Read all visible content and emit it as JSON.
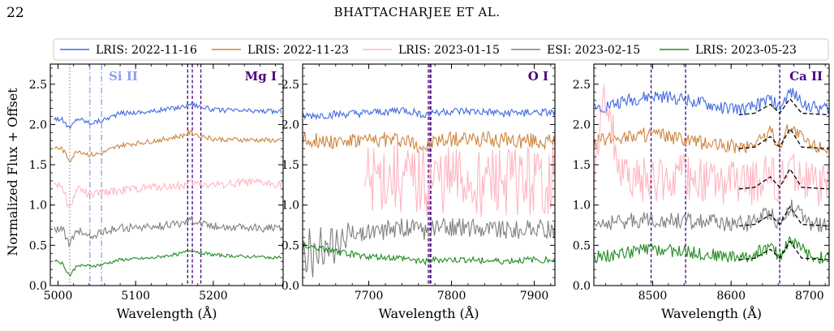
{
  "header": {
    "page_number": "22",
    "running_head": "BHATTACHARJEE ET AL."
  },
  "legend": {
    "placement": "top",
    "entries": [
      {
        "label": "LRIS: 2022-11-16",
        "color": "#4169e1"
      },
      {
        "label": "LRIS: 2022-11-23",
        "color": "#cd853f"
      },
      {
        "label": "LRIS: 2023-01-15",
        "color": "#ffb6c1"
      },
      {
        "label": "ESI: 2023-02-15",
        "color": "#808080"
      },
      {
        "label": "LRIS: 2023-05-23",
        "color": "#228b22"
      }
    ]
  },
  "shared_ylabel": "Normalized Flux + Offset",
  "chart_data": [
    {
      "type": "line",
      "xlabel": "Wavelength (Å)",
      "ylabel": "Normalized Flux + Offset",
      "xlim": [
        4990,
        5290
      ],
      "ylim": [
        0,
        2.75
      ],
      "xticks": [
        5000,
        5100,
        5200
      ],
      "yticks": [
        0.0,
        0.5,
        1.0,
        1.5,
        2.0,
        2.5
      ],
      "line_labels": [
        {
          "text": "Si II",
          "color": "#8a9ff0"
        },
        {
          "text": "Mg I",
          "color": "#4b0082"
        }
      ],
      "vlines": [
        {
          "x": 5015,
          "color": "#999999",
          "style": "dotted"
        },
        {
          "x": 5041,
          "color": "#8a9ff0",
          "style": "dashdot"
        },
        {
          "x": 5056,
          "color": "#8a9ff0",
          "style": "dashdot"
        },
        {
          "x": 5167,
          "color": "#4b0082",
          "style": "dashed"
        },
        {
          "x": 5173,
          "color": "#4b0082",
          "style": "dashed"
        },
        {
          "x": 5184,
          "color": "#4b0082",
          "style": "dashed"
        }
      ],
      "series": [
        {
          "name": "LRIS: 2022-11-16",
          "color": "#4169e1",
          "x": [
            4995,
            5005,
            5015,
            5025,
            5041,
            5056,
            5080,
            5120,
            5160,
            5170,
            5200,
            5240,
            5288
          ],
          "y": [
            2.08,
            2.06,
            1.95,
            2.08,
            2.02,
            2.05,
            2.14,
            2.16,
            2.22,
            2.26,
            2.18,
            2.17,
            2.16
          ]
        },
        {
          "name": "LRIS: 2022-11-23",
          "color": "#cd853f",
          "x": [
            4995,
            5005,
            5015,
            5025,
            5041,
            5056,
            5080,
            5120,
            5160,
            5170,
            5200,
            5240,
            5288
          ],
          "y": [
            1.71,
            1.7,
            1.55,
            1.68,
            1.62,
            1.64,
            1.74,
            1.79,
            1.86,
            1.9,
            1.82,
            1.81,
            1.8
          ]
        },
        {
          "name": "LRIS: 2023-01-15",
          "color": "#ffb6c1",
          "x": [
            4995,
            5005,
            5015,
            5025,
            5041,
            5056,
            5080,
            5120,
            5160,
            5170,
            5200,
            5240,
            5288
          ],
          "y": [
            1.27,
            1.25,
            0.95,
            1.22,
            1.12,
            1.15,
            1.18,
            1.22,
            1.24,
            1.27,
            1.25,
            1.28,
            1.26
          ]
        },
        {
          "name": "ESI: 2023-02-15",
          "color": "#808080",
          "x": [
            4995,
            5005,
            5015,
            5025,
            5041,
            5056,
            5080,
            5120,
            5160,
            5170,
            5200,
            5240,
            5288
          ],
          "y": [
            0.7,
            0.72,
            0.5,
            0.7,
            0.6,
            0.66,
            0.72,
            0.72,
            0.78,
            0.82,
            0.74,
            0.72,
            0.71
          ]
        },
        {
          "name": "LRIS: 2023-05-23",
          "color": "#228b22",
          "x": [
            4995,
            5005,
            5015,
            5025,
            5041,
            5056,
            5080,
            5120,
            5160,
            5170,
            5200,
            5240,
            5288
          ],
          "y": [
            0.32,
            0.28,
            0.12,
            0.26,
            0.24,
            0.26,
            0.32,
            0.34,
            0.4,
            0.44,
            0.38,
            0.36,
            0.35
          ]
        }
      ]
    },
    {
      "type": "line",
      "xlabel": "Wavelength (Å)",
      "xlim": [
        7620,
        7925
      ],
      "ylim": [
        0,
        2.75
      ],
      "xticks": [
        7700,
        7800,
        7900
      ],
      "yticks": [
        0.0,
        0.5,
        1.0,
        1.5,
        2.0,
        2.5
      ],
      "line_labels": [
        {
          "text": "O I",
          "color": "#4b0082"
        }
      ],
      "vlines": [
        {
          "x": 7772,
          "color": "#4b0082",
          "style": "dashed"
        },
        {
          "x": 7774,
          "color": "#4b0082",
          "style": "dashed"
        },
        {
          "x": 7775,
          "color": "#4b0082",
          "style": "dashed"
        }
      ],
      "series": [
        {
          "name": "LRIS: 2022-11-16",
          "color": "#4169e1",
          "x": [
            7620,
            7660,
            7700,
            7740,
            7770,
            7780,
            7820,
            7860,
            7900,
            7925
          ],
          "y": [
            2.1,
            2.12,
            2.14,
            2.18,
            2.12,
            2.16,
            2.16,
            2.14,
            2.15,
            2.14
          ]
        },
        {
          "name": "LRIS: 2022-11-23",
          "color": "#cd853f",
          "x": [
            7620,
            7660,
            7700,
            7740,
            7770,
            7780,
            7820,
            7860,
            7900,
            7925
          ],
          "y": [
            1.82,
            1.8,
            1.8,
            1.82,
            1.72,
            1.8,
            1.82,
            1.8,
            1.8,
            1.78
          ]
        },
        {
          "name": "LRIS: 2023-01-15",
          "color": "#ffb6c1",
          "x": [
            7695,
            7720,
            7740,
            7770,
            7780,
            7820,
            7860,
            7900,
            7925
          ],
          "y": [
            1.3,
            1.35,
            1.3,
            1.25,
            1.3,
            1.28,
            1.3,
            1.28,
            1.3
          ]
        },
        {
          "name": "ESI: 2023-02-15",
          "color": "#808080",
          "x": [
            7620,
            7640,
            7660,
            7680,
            7700,
            7740,
            7770,
            7780,
            7820,
            7860,
            7900,
            7925
          ],
          "y": [
            0.3,
            0.42,
            0.52,
            0.6,
            0.66,
            0.72,
            0.68,
            0.72,
            0.72,
            0.7,
            0.7,
            0.7
          ]
        },
        {
          "name": "LRIS: 2023-05-23",
          "color": "#228b22",
          "x": [
            7620,
            7660,
            7700,
            7740,
            7770,
            7780,
            7820,
            7860,
            7900,
            7925
          ],
          "y": [
            0.5,
            0.42,
            0.36,
            0.34,
            0.3,
            0.32,
            0.32,
            0.3,
            0.32,
            0.32
          ]
        }
      ]
    },
    {
      "type": "line",
      "xlabel": "Wavelength (Å)",
      "xlim": [
        8425,
        8725
      ],
      "ylim": [
        0,
        2.75
      ],
      "xticks": [
        8500,
        8600,
        8700
      ],
      "yticks": [
        0.0,
        0.5,
        1.0,
        1.5,
        2.0,
        2.5
      ],
      "line_labels": [
        {
          "text": "Ca II",
          "color": "#4b0082"
        }
      ],
      "vlines": [
        {
          "x": 8498,
          "color": "#4b0082",
          "style": "dashed"
        },
        {
          "x": 8542,
          "color": "#4b0082",
          "style": "dashed"
        },
        {
          "x": 8662,
          "color": "#4b0082",
          "style": "dashed"
        }
      ],
      "series": [
        {
          "name": "LRIS: 2022-11-16",
          "color": "#4169e1",
          "x": [
            8425,
            8460,
            8500,
            8540,
            8580,
            8620,
            8650,
            8662,
            8675,
            8700,
            8725
          ],
          "y": [
            2.2,
            2.28,
            2.35,
            2.32,
            2.22,
            2.18,
            2.32,
            2.2,
            2.4,
            2.22,
            2.2
          ]
        },
        {
          "name": "LRIS: 2022-11-23",
          "color": "#cd853f",
          "x": [
            8425,
            8460,
            8500,
            8540,
            8580,
            8620,
            8650,
            8662,
            8675,
            8700,
            8725
          ],
          "y": [
            1.78,
            1.85,
            1.88,
            1.8,
            1.75,
            1.72,
            1.9,
            1.74,
            1.98,
            1.75,
            1.72
          ]
        },
        {
          "name": "LRIS: 2023-01-15",
          "color": "#ffb6c1",
          "x": [
            8425,
            8440,
            8460,
            8500,
            8540,
            8580,
            8620,
            8650,
            8662,
            8675,
            8700,
            8725
          ],
          "y": [
            1.3,
            2.4,
            1.35,
            1.3,
            1.35,
            1.28,
            1.25,
            1.38,
            1.22,
            1.48,
            1.25,
            1.22
          ]
        },
        {
          "name": "ESI: 2023-02-15",
          "color": "#808080",
          "x": [
            8425,
            8460,
            8500,
            8540,
            8580,
            8620,
            8650,
            8662,
            8675,
            8700,
            8725
          ],
          "y": [
            0.76,
            0.8,
            0.82,
            0.8,
            0.78,
            0.76,
            0.92,
            0.74,
            1.0,
            0.76,
            0.74
          ]
        },
        {
          "name": "LRIS: 2023-05-23",
          "color": "#228b22",
          "x": [
            8425,
            8460,
            8500,
            8540,
            8580,
            8620,
            8650,
            8662,
            8675,
            8700,
            8725
          ],
          "y": [
            0.35,
            0.4,
            0.45,
            0.42,
            0.38,
            0.35,
            0.48,
            0.36,
            0.58,
            0.36,
            0.34
          ]
        }
      ],
      "fits": [
        {
          "x": [
            8610,
            8630,
            8650,
            8662,
            8675,
            8690,
            8725
          ],
          "y": [
            2.12,
            2.14,
            2.25,
            2.14,
            2.32,
            2.14,
            2.12
          ]
        },
        {
          "x": [
            8610,
            8630,
            8650,
            8662,
            8675,
            8690,
            8725
          ],
          "y": [
            1.7,
            1.72,
            1.85,
            1.72,
            1.95,
            1.72,
            1.7
          ]
        },
        {
          "x": [
            8610,
            8630,
            8650,
            8662,
            8675,
            8690,
            8725
          ],
          "y": [
            1.2,
            1.22,
            1.35,
            1.22,
            1.45,
            1.22,
            1.2
          ]
        },
        {
          "x": [
            8610,
            8630,
            8650,
            8662,
            8675,
            8690,
            8725
          ],
          "y": [
            0.74,
            0.76,
            0.88,
            0.76,
            0.98,
            0.76,
            0.74
          ]
        },
        {
          "x": [
            8610,
            8630,
            8650,
            8662,
            8675,
            8690,
            8725
          ],
          "y": [
            0.32,
            0.34,
            0.45,
            0.34,
            0.55,
            0.34,
            0.32
          ]
        }
      ]
    }
  ]
}
